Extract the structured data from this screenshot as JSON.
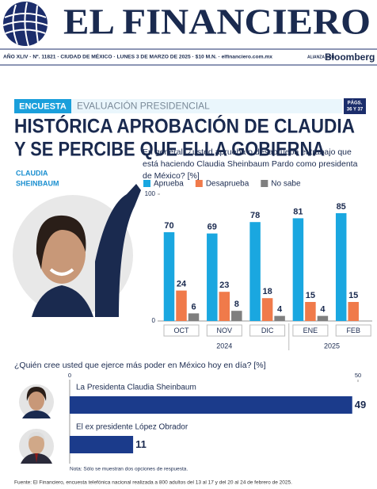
{
  "masthead": {
    "title": "EL FINANCIERO",
    "edition": "AÑO XLIV · Nº. 11821 · CIUDAD DE MÉXICO · LUNES 3 DE MARZO DE 2025 · $10 M.N. · elfinanciero.com.mx",
    "alliance": "ALIANZA CON",
    "partner": "Bloomberg"
  },
  "section": {
    "tag": "ENCUESTA",
    "label": "EVALUACIÓN PRESIDENCIAL",
    "pages": [
      "PÁGS.",
      "36 Y 37"
    ]
  },
  "headline": [
    "HISTÓRICA APROBACIÓN DE CLAUDIA",
    "Y SE PERCIBE QUE ELLA GOBIERNA"
  ],
  "photo_caption": [
    "CLAUDIA",
    "SHEINBAUM"
  ],
  "chart_data": [
    {
      "type": "bar",
      "title": "En general, ¿usted aprueba o desaprueba el trabajo que está haciendo Claudia Sheinbaum Pardo como presidenta de México? [%]",
      "groups": [
        {
          "name": "2024",
          "categories": [
            "OCT",
            "NOV",
            "DIC"
          ]
        },
        {
          "name": "2025",
          "categories": [
            "ENE",
            "FEB"
          ]
        }
      ],
      "series": [
        {
          "name": "Aprueba",
          "color": "#1aa7e0",
          "values": [
            70,
            69,
            78,
            81,
            85
          ]
        },
        {
          "name": "Desaprueba",
          "color": "#f07a4a",
          "values": [
            24,
            23,
            18,
            15,
            15
          ]
        },
        {
          "name": "No sabe",
          "color": "#7f7f7f",
          "values": [
            6,
            8,
            4,
            4,
            null
          ]
        }
      ],
      "ylim": [
        0,
        100
      ],
      "yticks": [
        0,
        100
      ],
      "grid": false
    },
    {
      "type": "barh",
      "title": "¿Quién cree usted que ejerce más poder en México hoy en día? [%]",
      "categories": [
        "La Presidenta Claudia Sheinbaum",
        "El ex presidente López Obrador"
      ],
      "values": [
        49,
        11
      ],
      "color": "#1b3b8b",
      "xlim": [
        0,
        50
      ],
      "xticks": [
        0,
        50
      ],
      "note": "Nota: Sólo se muestran dos opciones de respuesta."
    }
  ],
  "source": "Fuente: El Financiero, encuesta telefónica nacional realizada a 800 adultos del 13 al 17 y del 20 al 24 de febrero de 2025."
}
